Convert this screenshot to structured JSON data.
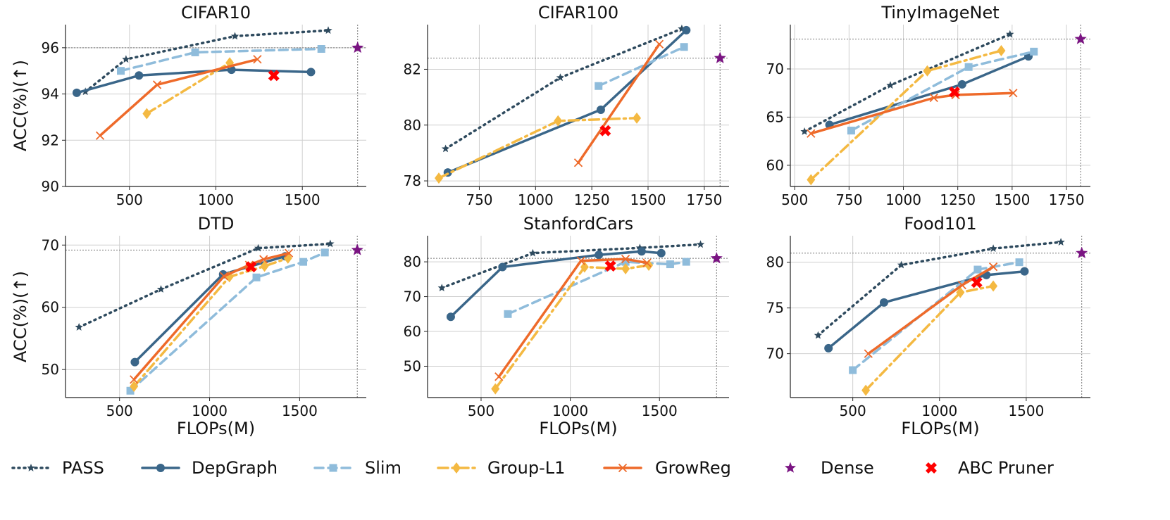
{
  "legend": {
    "placement": "bottom",
    "items": [
      {
        "key": "pass",
        "label": "PASS"
      },
      {
        "key": "depgraph",
        "label": "DepGraph"
      },
      {
        "key": "slim",
        "label": "Slim"
      },
      {
        "key": "groupl1",
        "label": "Group-L1"
      },
      {
        "key": "growreg",
        "label": "GrowReg"
      },
      {
        "key": "dense",
        "label": "Dense"
      },
      {
        "key": "abc",
        "label": "ABC Pruner"
      }
    ]
  },
  "styles": {
    "pass": {
      "color": "#2e4a5e",
      "dash": "2 6",
      "marker": "star",
      "width": 3.5
    },
    "depgraph": {
      "color": "#3a6689",
      "dash": "",
      "marker": "circle",
      "width": 3.5
    },
    "slim": {
      "color": "#8fbcdb",
      "dash": "12 7",
      "marker": "square",
      "width": 3.5
    },
    "groupl1": {
      "color": "#f4b942",
      "dash": "14 6 3 6",
      "marker": "diamond",
      "width": 3.5
    },
    "growreg": {
      "color": "#ee6a2a",
      "dash": "",
      "marker": "x",
      "width": 3.5
    },
    "dense": {
      "color": "#7a1482",
      "marker": "star"
    },
    "abc": {
      "color": "#ff0000",
      "marker": "bigx"
    }
  },
  "chart_data": [
    {
      "type": "line",
      "title": "CIFAR10",
      "xlabel": "",
      "ylabel": "ACC(%)(↑)",
      "xlim": [
        130,
        1870
      ],
      "ylim": [
        90,
        97
      ],
      "xticks": [
        500,
        1000,
        1500
      ],
      "yticks": [
        90,
        92,
        94,
        96
      ],
      "grid": true,
      "dense": {
        "x": 1820,
        "y": 96.0
      },
      "abc": {
        "x": 1335,
        "y": 94.8
      },
      "series": [
        {
          "key": "pass",
          "name": "PASS",
          "x": [
            245,
            480,
            1110,
            1650
          ],
          "y": [
            94.1,
            95.5,
            96.5,
            96.75
          ]
        },
        {
          "key": "depgraph",
          "name": "DepGraph",
          "x": [
            195,
            555,
            1090,
            1550
          ],
          "y": [
            94.05,
            94.8,
            95.05,
            94.95
          ]
        },
        {
          "key": "slim",
          "name": "Slim",
          "x": [
            450,
            880,
            1610
          ],
          "y": [
            95.0,
            95.8,
            95.95
          ]
        },
        {
          "key": "groupl1",
          "name": "Group-L1",
          "x": [
            600,
            1080
          ],
          "y": [
            93.15,
            95.35
          ]
        },
        {
          "key": "growreg",
          "name": "GrowReg",
          "x": [
            330,
            660,
            1240
          ],
          "y": [
            92.2,
            94.4,
            95.5
          ]
        }
      ]
    },
    {
      "type": "line",
      "title": "CIFAR100",
      "xlabel": "",
      "ylabel": "",
      "xlim": [
        520,
        1860
      ],
      "ylim": [
        77.8,
        83.6
      ],
      "xticks": [
        750,
        1000,
        1250,
        1500,
        1750
      ],
      "yticks": [
        78,
        80,
        82
      ],
      "grid": true,
      "dense": {
        "x": 1820,
        "y": 82.4
      },
      "abc": {
        "x": 1310,
        "y": 79.8
      },
      "series": [
        {
          "key": "pass",
          "name": "PASS",
          "x": [
            600,
            1110,
            1650
          ],
          "y": [
            79.15,
            81.7,
            83.45
          ]
        },
        {
          "key": "depgraph",
          "name": "DepGraph",
          "x": [
            610,
            1290,
            1670
          ],
          "y": [
            78.3,
            80.55,
            83.4
          ]
        },
        {
          "key": "slim",
          "name": "Slim",
          "x": [
            1280,
            1660
          ],
          "y": [
            81.4,
            82.8
          ]
        },
        {
          "key": "groupl1",
          "name": "Group-L1",
          "x": [
            570,
            1100,
            1450
          ],
          "y": [
            78.1,
            80.15,
            80.25
          ]
        },
        {
          "key": "growreg",
          "name": "GrowReg",
          "x": [
            1190,
            1550
          ],
          "y": [
            78.65,
            82.9
          ]
        }
      ]
    },
    {
      "type": "line",
      "title": "TinyImageNet",
      "xlabel": "",
      "ylabel": "",
      "xlim": [
        480,
        1860
      ],
      "ylim": [
        57.8,
        74.6
      ],
      "xticks": [
        500,
        750,
        1000,
        1250,
        1500,
        1750
      ],
      "yticks": [
        60,
        65,
        70
      ],
      "grid": true,
      "dense": {
        "x": 1815,
        "y": 73.1
      },
      "abc": {
        "x": 1235,
        "y": 67.6
      },
      "series": [
        {
          "key": "pass",
          "name": "PASS",
          "x": [
            545,
            940,
            1490
          ],
          "y": [
            63.5,
            68.3,
            73.6
          ]
        },
        {
          "key": "depgraph",
          "name": "DepGraph",
          "x": [
            660,
            1270,
            1575
          ],
          "y": [
            64.2,
            68.4,
            71.3
          ]
        },
        {
          "key": "slim",
          "name": "Slim",
          "x": [
            760,
            1300,
            1600
          ],
          "y": [
            63.6,
            70.2,
            71.8
          ]
        },
        {
          "key": "groupl1",
          "name": "Group-L1",
          "x": [
            575,
            1110,
            1450
          ],
          "y": [
            58.5,
            69.8,
            71.9
          ]
        },
        {
          "key": "growreg",
          "name": "GrowReg",
          "x": [
            575,
            1140,
            1240,
            1505
          ],
          "y": [
            63.3,
            67.0,
            67.3,
            67.5
          ]
        }
      ]
    },
    {
      "type": "line",
      "title": "DTD",
      "xlabel": "FLOPs(M)",
      "ylabel": "ACC(%)(↑)",
      "xlim": [
        200,
        1870
      ],
      "ylim": [
        45.5,
        71.5
      ],
      "xticks": [
        500,
        1000,
        1500
      ],
      "yticks": [
        50,
        60,
        70
      ],
      "grid": true,
      "dense": {
        "x": 1820,
        "y": 69.2
      },
      "abc": {
        "x": 1230,
        "y": 66.5
      },
      "series": [
        {
          "key": "pass",
          "name": "PASS",
          "x": [
            275,
            730,
            1270,
            1670
          ],
          "y": [
            56.8,
            62.9,
            69.5,
            70.2
          ]
        },
        {
          "key": "depgraph",
          "name": "DepGraph",
          "x": [
            585,
            1075,
            1420
          ],
          "y": [
            51.2,
            65.3,
            68.2
          ]
        },
        {
          "key": "slim",
          "name": "Slim",
          "x": [
            560,
            1260,
            1520,
            1640
          ],
          "y": [
            46.6,
            64.8,
            67.3,
            68.8
          ]
        },
        {
          "key": "groupl1",
          "name": "Group-L1",
          "x": [
            580,
            1110,
            1305,
            1435
          ],
          "y": [
            47.3,
            64.9,
            66.6,
            67.9
          ]
        },
        {
          "key": "growreg",
          "name": "GrowReg",
          "x": [
            580,
            1080,
            1220,
            1300,
            1440
          ],
          "y": [
            48.4,
            65.0,
            66.8,
            67.7,
            68.7
          ]
        }
      ]
    },
    {
      "type": "line",
      "title": "StanfordCars",
      "xlabel": "FLOPs(M)",
      "ylabel": "",
      "xlim": [
        200,
        1890
      ],
      "ylim": [
        41,
        87.5
      ],
      "xticks": [
        500,
        1000,
        1500
      ],
      "yticks": [
        50,
        60,
        70,
        80
      ],
      "grid": true,
      "dense": {
        "x": 1820,
        "y": 81.0
      },
      "abc": {
        "x": 1225,
        "y": 78.8
      },
      "series": [
        {
          "key": "pass",
          "name": "PASS",
          "x": [
            280,
            790,
            1390,
            1730
          ],
          "y": [
            72.5,
            82.5,
            84.0,
            85.0
          ]
        },
        {
          "key": "depgraph",
          "name": "DepGraph",
          "x": [
            330,
            620,
            1160,
            1400,
            1510
          ],
          "y": [
            64.2,
            78.5,
            82.0,
            83.0,
            82.5
          ]
        },
        {
          "key": "slim",
          "name": "Slim",
          "x": [
            650,
            1310,
            1560,
            1650
          ],
          "y": [
            65.0,
            80.0,
            79.3,
            80.0
          ]
        },
        {
          "key": "groupl1",
          "name": "Group-L1",
          "x": [
            580,
            1080,
            1310,
            1440
          ],
          "y": [
            43.5,
            78.5,
            78.0,
            79.0
          ]
        },
        {
          "key": "growreg",
          "name": "GrowReg",
          "x": [
            600,
            1060,
            1310,
            1430
          ],
          "y": [
            47.0,
            80.3,
            80.8,
            79.7
          ]
        }
      ]
    },
    {
      "type": "line",
      "title": "Food101",
      "xlabel": "FLOPs(M)",
      "ylabel": "",
      "xlim": [
        140,
        1870
      ],
      "ylim": [
        65.2,
        82.9
      ],
      "xticks": [
        500,
        1000,
        1500
      ],
      "yticks": [
        70,
        75,
        80
      ],
      "grid": true,
      "dense": {
        "x": 1820,
        "y": 81.0
      },
      "abc": {
        "x": 1215,
        "y": 77.8
      },
      "series": [
        {
          "key": "pass",
          "name": "PASS",
          "x": [
            300,
            780,
            1310,
            1700
          ],
          "y": [
            72.0,
            79.7,
            81.5,
            82.2
          ]
        },
        {
          "key": "depgraph",
          "name": "DepGraph",
          "x": [
            360,
            680,
            1270,
            1490
          ],
          "y": [
            70.6,
            75.6,
            78.6,
            79.0
          ]
        },
        {
          "key": "slim",
          "name": "Slim",
          "x": [
            500,
            1220,
            1460
          ],
          "y": [
            68.2,
            79.2,
            80.0
          ]
        },
        {
          "key": "groupl1",
          "name": "Group-L1",
          "x": [
            575,
            1120,
            1310
          ],
          "y": [
            66.0,
            76.7,
            77.4
          ]
        },
        {
          "key": "growreg",
          "name": "GrowReg",
          "x": [
            590,
            1130,
            1310
          ],
          "y": [
            70.0,
            77.5,
            79.5
          ]
        }
      ]
    }
  ]
}
